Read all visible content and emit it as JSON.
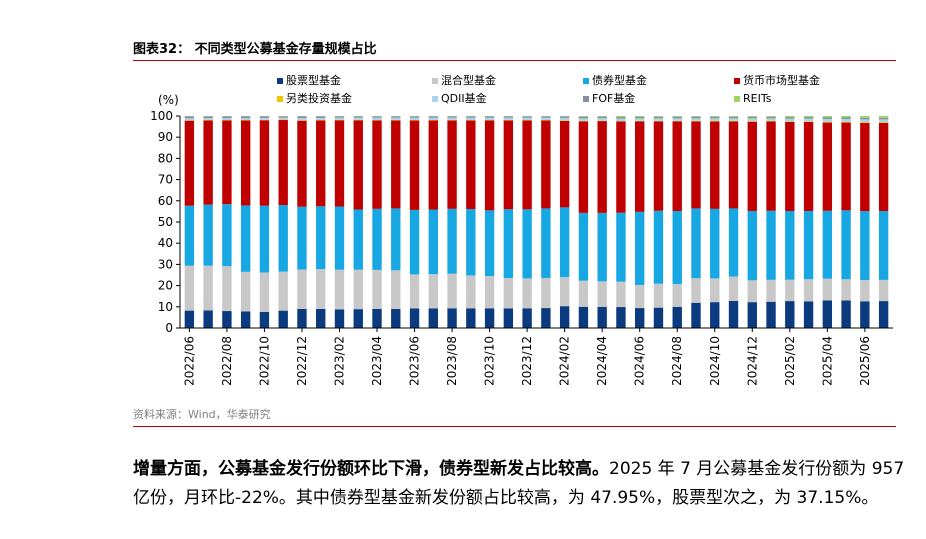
{
  "figure": {
    "title": "图表32：  不同类型公募基金存量规模占比",
    "source": "资料来源：Wind，华泰研究"
  },
  "paragraph": {
    "bold": "增量方面，公募基金发行份额环比下滑，债券型新发占比较高。",
    "text": "2025 年 7 月公募基金发行份额为 957 亿份，月环比-22%。其中债券型基金新发份额占比较高，为 47.95%，股票型次之，为 37.15%。"
  },
  "chart_data": {
    "type": "bar",
    "stacked": true,
    "ylabel": "(%)",
    "ylim": [
      0,
      100
    ],
    "yticks": [
      0,
      10,
      20,
      30,
      40,
      50,
      60,
      70,
      80,
      90,
      100
    ],
    "categories": [
      "2022/06",
      "2022/07",
      "2022/08",
      "2022/09",
      "2022/10",
      "2022/11",
      "2022/12",
      "2023/01",
      "2023/02",
      "2023/03",
      "2023/04",
      "2023/05",
      "2023/06",
      "2023/07",
      "2023/08",
      "2023/09",
      "2023/10",
      "2023/11",
      "2023/12",
      "2024/01",
      "2024/02",
      "2024/03",
      "2024/04",
      "2024/05",
      "2024/06",
      "2024/07",
      "2024/08",
      "2024/09",
      "2024/10",
      "2024/11",
      "2024/12",
      "2025/01",
      "2025/02",
      "2025/03",
      "2025/04",
      "2025/05",
      "2025/06",
      "2025/07"
    ],
    "tick_labels": [
      "2022/06",
      "2022/08",
      "2022/10",
      "2022/12",
      "2023/02",
      "2023/04",
      "2023/06",
      "2023/08",
      "2023/10",
      "2023/12",
      "2024/02",
      "2024/04",
      "2024/06",
      "2024/08",
      "2024/10",
      "2024/12",
      "2025/02",
      "2025/04",
      "2025/06"
    ],
    "legend_position": "top",
    "series": [
      {
        "name": "股票型基金",
        "color": "#0b3a7e",
        "values": [
          8.2,
          8.3,
          8.0,
          7.8,
          7.6,
          8.2,
          9.0,
          9.0,
          8.8,
          8.9,
          9.0,
          9.0,
          9.2,
          9.2,
          9.3,
          9.3,
          9.3,
          9.2,
          9.3,
          9.4,
          10.3,
          10.0,
          10.0,
          9.9,
          9.4,
          9.6,
          10.0,
          11.9,
          12.2,
          12.8,
          12.2,
          12.4,
          12.7,
          12.5,
          13.0,
          13.0,
          12.6,
          12.7
        ]
      },
      {
        "name": "混合型基金",
        "color": "#c8c8c8",
        "values": [
          21.2,
          21.1,
          21.2,
          18.7,
          18.6,
          18.4,
          18.6,
          18.8,
          18.7,
          18.6,
          18.4,
          18.2,
          16.1,
          16.2,
          16.3,
          15.5,
          15.2,
          14.4,
          14.1,
          14.2,
          13.7,
          12.3,
          12.0,
          12.0,
          10.9,
          11.3,
          10.7,
          11.6,
          11.2,
          11.5,
          10.3,
          10.3,
          10.1,
          10.5,
          10.3,
          10.0,
          10.0,
          10.0
        ]
      },
      {
        "name": "债券型基金",
        "color": "#17a8e3",
        "values": [
          28.3,
          28.8,
          29.2,
          31.3,
          31.5,
          31.4,
          29.6,
          29.6,
          29.8,
          28.4,
          28.8,
          29.2,
          30.4,
          30.5,
          30.6,
          31.3,
          31.0,
          32.4,
          32.6,
          32.8,
          32.9,
          32.0,
          32.3,
          32.6,
          34.5,
          34.4,
          34.5,
          32.9,
          32.8,
          32.1,
          32.7,
          32.6,
          32.4,
          32.2,
          32.0,
          32.5,
          32.5,
          32.5
        ]
      },
      {
        "name": "货币市场型基金",
        "color": "#c00000",
        "values": [
          40.1,
          39.7,
          39.5,
          40.1,
          40.3,
          40.1,
          40.6,
          40.5,
          40.7,
          42.1,
          41.7,
          41.5,
          42.2,
          42.0,
          41.7,
          41.8,
          42.4,
          41.9,
          41.9,
          41.5,
          40.8,
          43.2,
          43.3,
          43.1,
          42.7,
          42.2,
          42.3,
          41.0,
          41.2,
          41.0,
          42.1,
          42.1,
          42.0,
          42.0,
          41.6,
          41.4,
          41.6,
          41.5
        ]
      },
      {
        "name": "另类投资基金",
        "color": "#f5c400",
        "values": [
          0.2,
          0.2,
          0.2,
          0.2,
          0.2,
          0.2,
          0.2,
          0.2,
          0.2,
          0.2,
          0.2,
          0.2,
          0.2,
          0.2,
          0.2,
          0.2,
          0.2,
          0.2,
          0.2,
          0.2,
          0.2,
          0.2,
          0.2,
          0.2,
          0.2,
          0.2,
          0.2,
          0.3,
          0.3,
          0.3,
          0.3,
          0.3,
          0.3,
          0.3,
          0.4,
          0.4,
          0.4,
          0.4
        ]
      },
      {
        "name": "QDII基金",
        "color": "#a8d4ec",
        "values": [
          0.9,
          0.9,
          0.9,
          0.9,
          0.9,
          0.9,
          1.0,
          1.0,
          1.0,
          1.0,
          1.1,
          1.1,
          1.1,
          1.1,
          1.1,
          1.1,
          1.1,
          1.1,
          1.1,
          1.1,
          1.2,
          1.2,
          1.2,
          1.2,
          1.2,
          1.2,
          1.2,
          1.2,
          1.2,
          1.2,
          1.3,
          1.2,
          1.3,
          1.3,
          1.3,
          1.3,
          1.3,
          1.3
        ]
      },
      {
        "name": "FOF基金",
        "color": "#8a8fa0",
        "values": [
          1.0,
          0.9,
          0.9,
          0.9,
          0.8,
          0.7,
          0.9,
          0.8,
          0.7,
          0.7,
          0.7,
          0.7,
          0.7,
          0.7,
          0.7,
          0.7,
          0.7,
          0.7,
          0.7,
          0.7,
          0.7,
          0.7,
          0.7,
          0.7,
          0.7,
          0.7,
          0.7,
          0.7,
          0.7,
          0.7,
          0.7,
          0.7,
          0.7,
          0.7,
          0.7,
          0.7,
          0.7,
          0.7
        ]
      },
      {
        "name": "REITs",
        "color": "#9dd45f",
        "values": [
          0.1,
          0.1,
          0.1,
          0.1,
          0.1,
          0.1,
          0.1,
          0.1,
          0.1,
          0.1,
          0.1,
          0.1,
          0.1,
          0.1,
          0.1,
          0.1,
          0.1,
          0.1,
          0.1,
          0.1,
          0.2,
          0.4,
          0.3,
          0.5,
          0.4,
          0.4,
          0.4,
          0.4,
          0.4,
          0.4,
          0.4,
          0.4,
          0.5,
          0.5,
          0.7,
          0.7,
          0.9,
          0.9
        ]
      }
    ]
  }
}
